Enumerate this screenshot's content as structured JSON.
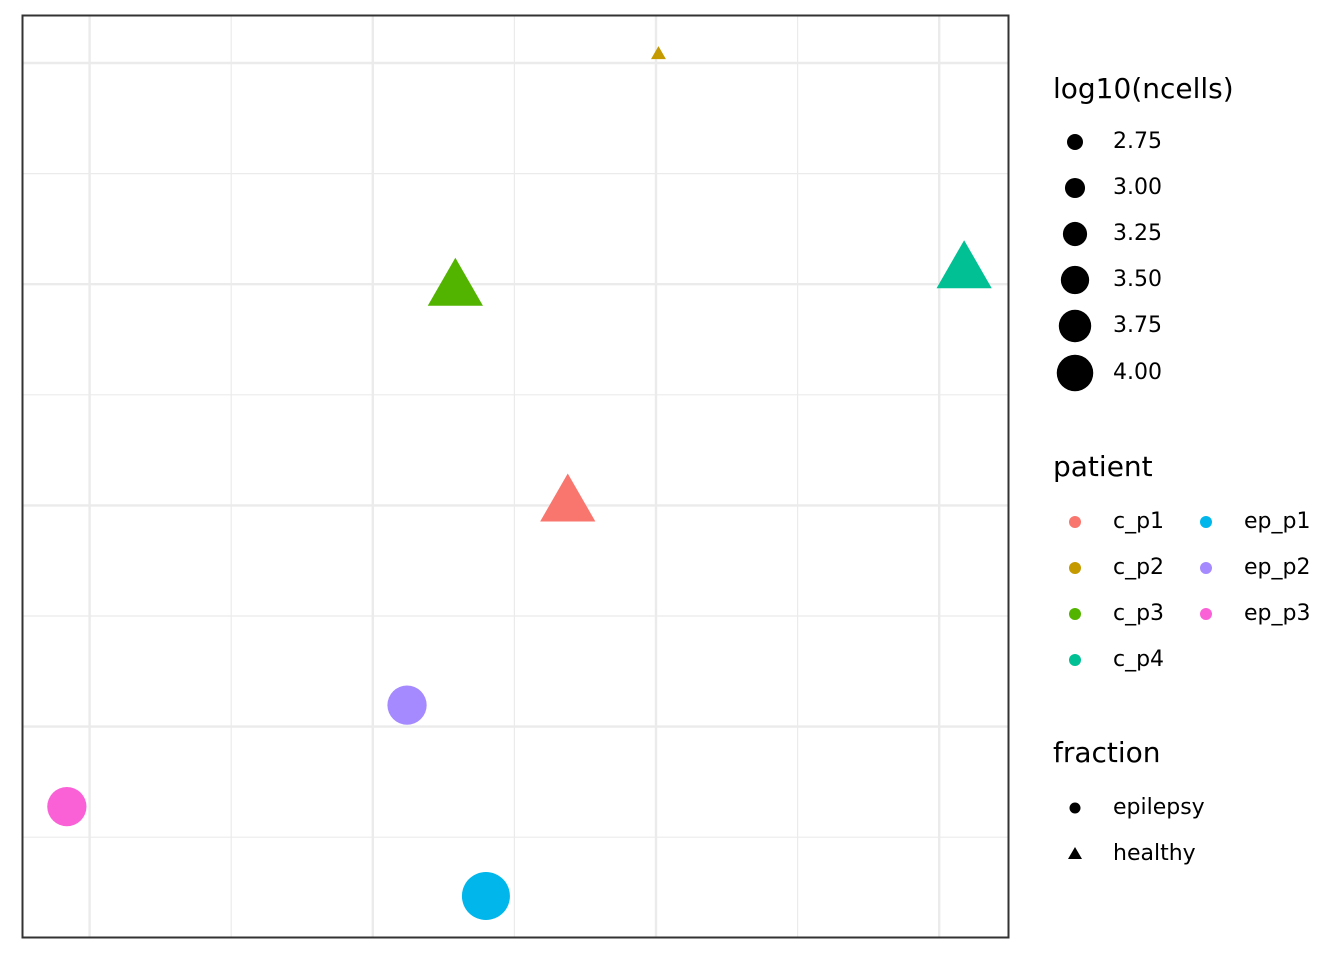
{
  "chart_data": {
    "type": "scatter",
    "title": "",
    "xlabel": "",
    "ylabel": "",
    "xlim": [
      0,
      100
    ],
    "ylim": [
      0,
      100
    ],
    "grid": true,
    "legend_placement": "right",
    "colors": {
      "c_p1": "#F8766D",
      "c_p2": "#C49A00",
      "c_p3": "#53B400",
      "c_p4": "#00C094",
      "ep_p1": "#00B6EB",
      "ep_p2": "#A58AFF",
      "ep_p3": "#FB61D7"
    },
    "points": [
      {
        "patient": "c_p1",
        "fraction": "healthy",
        "x": 55.3,
        "y": 47.1,
        "log10_ncells": 3.5
      },
      {
        "patient": "c_p2",
        "fraction": "healthy",
        "x": 64.5,
        "y": 95.8,
        "log10_ncells": 2.5
      },
      {
        "patient": "c_p3",
        "fraction": "healthy",
        "x": 43.9,
        "y": 70.5,
        "log10_ncells": 3.5
      },
      {
        "patient": "c_p4",
        "fraction": "healthy",
        "x": 95.5,
        "y": 72.4,
        "log10_ncells": 3.5
      },
      {
        "patient": "ep_p1",
        "fraction": "epilepsy",
        "x": 47.0,
        "y": 4.5,
        "log10_ncells": 3.5
      },
      {
        "patient": "ep_p2",
        "fraction": "epilepsy",
        "x": 39.0,
        "y": 25.2,
        "log10_ncells": 3.25
      },
      {
        "patient": "ep_p3",
        "fraction": "epilepsy",
        "x": 4.5,
        "y": 14.2,
        "log10_ncells": 3.25
      }
    ]
  },
  "legend_size": {
    "title": "log10(ncells)",
    "items": [
      {
        "label": "2.75",
        "value": 2.75
      },
      {
        "label": "3.00",
        "value": 3.0
      },
      {
        "label": "3.25",
        "value": 3.25
      },
      {
        "label": "3.50",
        "value": 3.5
      },
      {
        "label": "3.75",
        "value": 3.75
      },
      {
        "label": "4.00",
        "value": 4.0
      }
    ]
  },
  "legend_patient": {
    "title": "patient",
    "items": [
      {
        "label": "c_p1",
        "key": "c_p1"
      },
      {
        "label": "c_p2",
        "key": "c_p2"
      },
      {
        "label": "c_p3",
        "key": "c_p3"
      },
      {
        "label": "c_p4",
        "key": "c_p4"
      },
      {
        "label": "ep_p1",
        "key": "ep_p1"
      },
      {
        "label": "ep_p2",
        "key": "ep_p2"
      },
      {
        "label": "ep_p3",
        "key": "ep_p3"
      }
    ]
  },
  "legend_fraction": {
    "title": "fraction",
    "items": [
      {
        "label": "epilepsy",
        "shape": "circle"
      },
      {
        "label": "healthy",
        "shape": "triangle"
      }
    ]
  }
}
